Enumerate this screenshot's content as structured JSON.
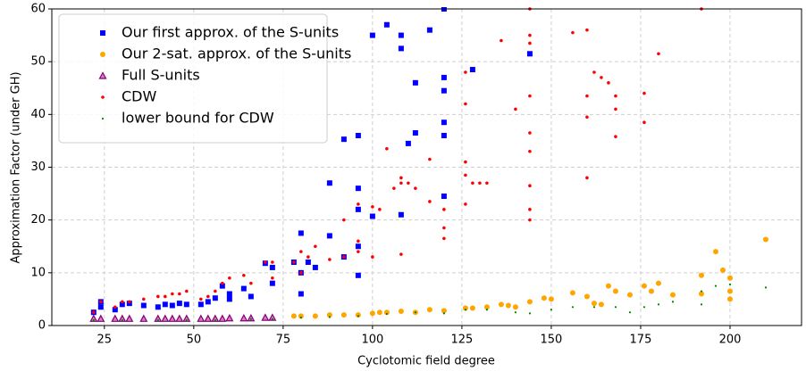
{
  "chart_data": {
    "type": "scatter",
    "xlabel": "Cyclotomic field degree",
    "ylabel": "Approximation Factor (under GH)",
    "xlim": [
      10.3,
      220
    ],
    "ylim": [
      0,
      60
    ],
    "xticks": [
      25,
      50,
      75,
      100,
      125,
      150,
      175,
      200
    ],
    "yticks": [
      0,
      10,
      20,
      30,
      40,
      50,
      60
    ],
    "grid": true,
    "legend": "upper left",
    "series": [
      {
        "name": "Our first approx. of the S-units",
        "color": "#0000ff",
        "marker": "square",
        "x": [
          22,
          24,
          24,
          28,
          30,
          32,
          36,
          40,
          42,
          44,
          46,
          48,
          52,
          54,
          56,
          58,
          60,
          60,
          64,
          66,
          70,
          72,
          72,
          78,
          80,
          80,
          80,
          82,
          84,
          88,
          88,
          92,
          92,
          96,
          96,
          96,
          96,
          96,
          100,
          100,
          104,
          108,
          108,
          108,
          110,
          112,
          112,
          116,
          120,
          120,
          120,
          120,
          120,
          120,
          128,
          144
        ],
        "values": [
          2.5,
          3.5,
          4.5,
          3,
          4,
          4.2,
          3.8,
          3.5,
          4,
          3.8,
          4.2,
          4,
          4,
          4.5,
          5.2,
          7.5,
          6,
          5,
          7,
          5.5,
          11.8,
          8,
          11,
          12,
          17.5,
          10,
          6,
          12,
          11,
          27,
          17,
          35.3,
          13,
          36,
          26,
          22,
          15,
          9.5,
          55,
          20.7,
          57,
          55,
          52.5,
          21,
          34.5,
          46,
          36.5,
          56,
          60,
          47,
          44.5,
          38.5,
          36,
          24.5,
          48.5,
          51.5
        ]
      },
      {
        "name": "Our 2-sat. approx. of the S-units",
        "color": "#ffa500",
        "marker": "circle",
        "x": [
          78,
          80,
          84,
          88,
          92,
          96,
          100,
          102,
          104,
          108,
          112,
          116,
          120,
          126,
          128,
          132,
          136,
          138,
          140,
          144,
          148,
          150,
          156,
          160,
          162,
          164,
          166,
          168,
          172,
          176,
          178,
          180,
          184,
          192,
          192,
          196,
          198,
          200,
          200,
          200,
          210
        ],
        "values": [
          1.8,
          1.8,
          1.8,
          2,
          2,
          2,
          2.3,
          2.5,
          2.5,
          2.7,
          2.5,
          3,
          2.8,
          3.3,
          3.3,
          3.5,
          4,
          3.8,
          3.5,
          4.5,
          5.2,
          5,
          6.2,
          5.5,
          4.2,
          4,
          7.5,
          6.5,
          5.8,
          7.5,
          6.5,
          8,
          5.8,
          9.5,
          6,
          14,
          10.5,
          9,
          6.5,
          5,
          16.3
        ]
      },
      {
        "name": "Full S-units",
        "color": "#800080",
        "marker": "triangle",
        "x": [
          22,
          24,
          28,
          30,
          32,
          36,
          40,
          42,
          44,
          46,
          48,
          52,
          54,
          56,
          58,
          60,
          64,
          66,
          70,
          72
        ],
        "values": [
          1.3,
          1.3,
          1.3,
          1.3,
          1.3,
          1.3,
          1.3,
          1.3,
          1.3,
          1.3,
          1.3,
          1.3,
          1.3,
          1.3,
          1.3,
          1.4,
          1.4,
          1.4,
          1.5,
          1.5
        ]
      },
      {
        "name": "CDW",
        "color": "#ff0000",
        "marker": "dot",
        "x": [
          22,
          24,
          28,
          30,
          32,
          36,
          40,
          42,
          44,
          46,
          48,
          52,
          54,
          56,
          58,
          60,
          64,
          66,
          70,
          72,
          72,
          78,
          80,
          80,
          82,
          84,
          88,
          92,
          92,
          96,
          96,
          96,
          100,
          100,
          102,
          104,
          106,
          108,
          108,
          108,
          110,
          112,
          116,
          116,
          120,
          120,
          120,
          126,
          126,
          126,
          126,
          126,
          128,
          130,
          132,
          136,
          140,
          144,
          144,
          144,
          144,
          144,
          144,
          144,
          144,
          144,
          156,
          160,
          160,
          160,
          160,
          162,
          164,
          166,
          168,
          168,
          168,
          176,
          176,
          180,
          192
        ],
        "values": [
          2.5,
          4.5,
          3.5,
          4.5,
          4.5,
          5,
          5.5,
          5.5,
          6,
          6,
          6.5,
          5,
          5.5,
          6.5,
          8,
          9,
          9.5,
          8,
          12,
          12,
          9,
          12,
          14,
          10,
          13,
          15,
          12.5,
          20,
          13,
          23,
          16,
          14,
          22.5,
          13,
          22,
          33.5,
          26,
          28,
          27,
          13.5,
          27,
          26,
          31.5,
          23.5,
          22,
          18.5,
          16.5,
          48,
          42,
          31,
          28.5,
          23,
          27,
          27,
          27,
          54,
          41,
          60,
          55,
          53.5,
          43.5,
          36.5,
          33,
          26.5,
          22,
          20,
          55.5,
          56,
          43.5,
          39.5,
          28,
          48,
          47,
          46,
          43.5,
          41,
          35.8,
          44,
          38.5,
          51.5,
          60
        ]
      },
      {
        "name": "lower bound for CDW",
        "color": "#008000",
        "marker": "tiny",
        "x": [
          22,
          30,
          40,
          48,
          56,
          66,
          72,
          80,
          88,
          96,
          104,
          112,
          120,
          126,
          132,
          140,
          144,
          150,
          156,
          162,
          168,
          172,
          176,
          180,
          184,
          192,
          192,
          196,
          200,
          210
        ],
        "values": [
          1,
          1,
          1,
          1,
          1,
          1.2,
          1.2,
          1.5,
          1.6,
          1.8,
          2.2,
          2.5,
          2.3,
          3,
          3,
          2.5,
          2.3,
          3,
          3.5,
          3.5,
          3.5,
          2.5,
          3.5,
          4,
          4.5,
          4,
          6.5,
          7.5,
          7.8,
          7.2
        ]
      }
    ]
  }
}
